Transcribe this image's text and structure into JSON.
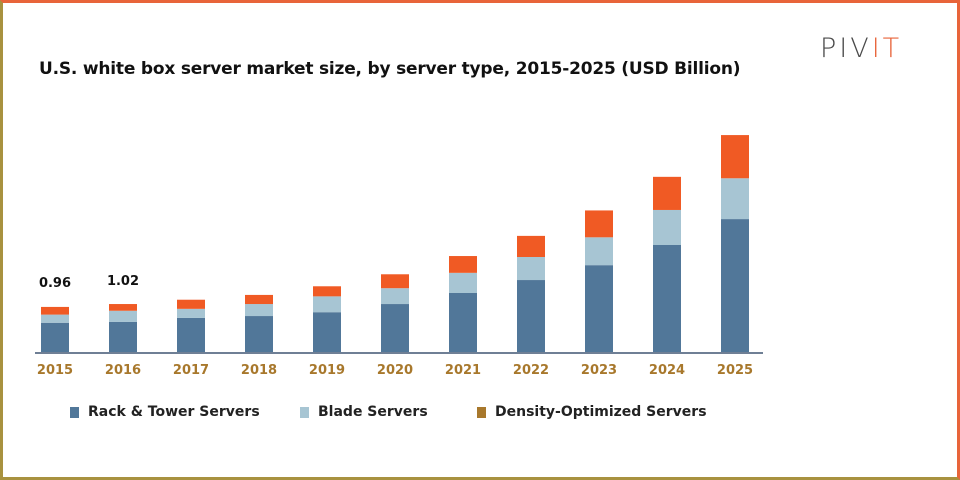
{
  "chart_data": {
    "type": "bar",
    "stacked": true,
    "title": "U.S. white box server market size, by server type, 2015-2025 (USD Billion)",
    "categories": [
      "2015",
      "2016",
      "2017",
      "2018",
      "2019",
      "2020",
      "2021",
      "2022",
      "2023",
      "2024",
      "2025"
    ],
    "series": [
      {
        "name": "Rack & Tower Servers",
        "color": "#517799",
        "values": [
          0.63,
          0.65,
          0.73,
          0.77,
          0.85,
          1.02,
          1.25,
          1.52,
          1.83,
          2.25,
          2.79
        ]
      },
      {
        "name": "Blade Servers",
        "color": "#a7c5d3",
        "values": [
          0.17,
          0.23,
          0.19,
          0.25,
          0.33,
          0.33,
          0.42,
          0.48,
          0.58,
          0.73,
          0.85
        ]
      },
      {
        "name": "Density-Optimized Servers",
        "color": "#f05a24",
        "legend_color": "#a8782c",
        "values": [
          0.16,
          0.14,
          0.19,
          0.19,
          0.21,
          0.29,
          0.35,
          0.44,
          0.56,
          0.69,
          0.9
        ]
      }
    ],
    "data_labels": [
      {
        "category": "2015",
        "text": "0.96"
      },
      {
        "category": "2016",
        "text": "1.02"
      }
    ],
    "ylim": [
      0,
      4.6
    ],
    "y_axis_visible": false,
    "grid": false,
    "legend_position": "bottom",
    "tick_label_color": "#a8782c"
  },
  "logo": {
    "text_left": "PIV",
    "text_right": "IT"
  }
}
